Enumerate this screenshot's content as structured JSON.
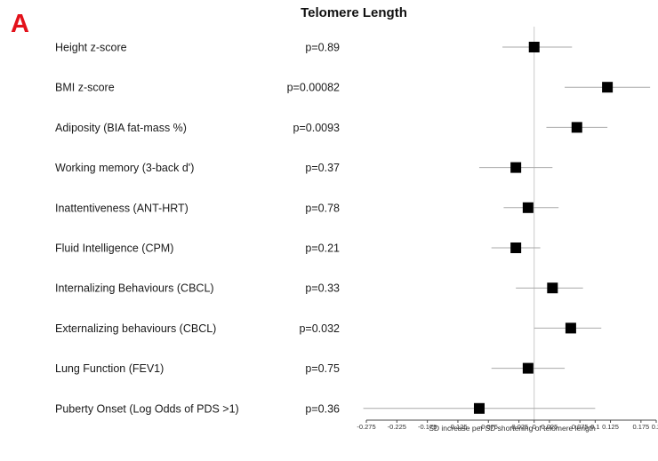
{
  "panel_label": "A",
  "chart_data": {
    "type": "forest",
    "title": "Telomere Length",
    "xlabel": "SD increase per SD shortening of telomere length",
    "xlim": [
      -0.275,
      0.2
    ],
    "xticks": [
      {
        "value": -0.275,
        "label": "-0.275"
      },
      {
        "value": -0.225,
        "label": "-0.225"
      },
      {
        "value": -0.175,
        "label": "-0.175"
      },
      {
        "value": -0.125,
        "label": "-0.125"
      },
      {
        "value": -0.075,
        "label": "-0.075"
      },
      {
        "value": -0.025,
        "label": "-0.025"
      },
      {
        "value": 0,
        "label": "0"
      },
      {
        "value": 0.025,
        "label": "0.025"
      },
      {
        "value": 0.075,
        "label": "0.075"
      },
      {
        "value": 0.1,
        "label": "0.1"
      },
      {
        "value": 0.125,
        "label": "0.125"
      },
      {
        "value": 0.175,
        "label": "0.175"
      },
      {
        "value": 0.2,
        "label": "0.2"
      }
    ],
    "reference_line": 0,
    "rows": [
      {
        "label": "Height z-score",
        "p": "p=0.89",
        "estimate": 0.0,
        "ci": [
          -0.052,
          0.062
        ]
      },
      {
        "label": "BMI z-score",
        "p": "p=0.00082",
        "estimate": 0.12,
        "ci": [
          0.05,
          0.19
        ]
      },
      {
        "label": "Adiposity (BIA fat-mass %)",
        "p": "p=0.0093",
        "estimate": 0.07,
        "ci": [
          0.02,
          0.12
        ]
      },
      {
        "label": "Working memory (3-back d')",
        "p": "p=0.37",
        "estimate": -0.03,
        "ci": [
          -0.09,
          0.03
        ]
      },
      {
        "label": "Inattentiveness (ANT-HRT)",
        "p": "p=0.78",
        "estimate": -0.01,
        "ci": [
          -0.05,
          0.04
        ]
      },
      {
        "label": "Fluid Intelligence (CPM)",
        "p": "p=0.21",
        "estimate": -0.03,
        "ci": [
          -0.07,
          0.01
        ]
      },
      {
        "label": "Internalizing Behaviours (CBCL)",
        "p": "p=0.33",
        "estimate": 0.03,
        "ci": [
          -0.03,
          0.08
        ]
      },
      {
        "label": "Externalizing behaviours (CBCL)",
        "p": "p=0.032",
        "estimate": 0.06,
        "ci": [
          0.0,
          0.11
        ]
      },
      {
        "label": "Lung Function (FEV1)",
        "p": "p=0.75",
        "estimate": -0.01,
        "ci": [
          -0.07,
          0.05
        ]
      },
      {
        "label": "Puberty Onset (Log Odds of PDS >1)",
        "p": "p=0.36",
        "estimate": -0.09,
        "ci": [
          -0.28,
          0.1
        ]
      }
    ]
  }
}
